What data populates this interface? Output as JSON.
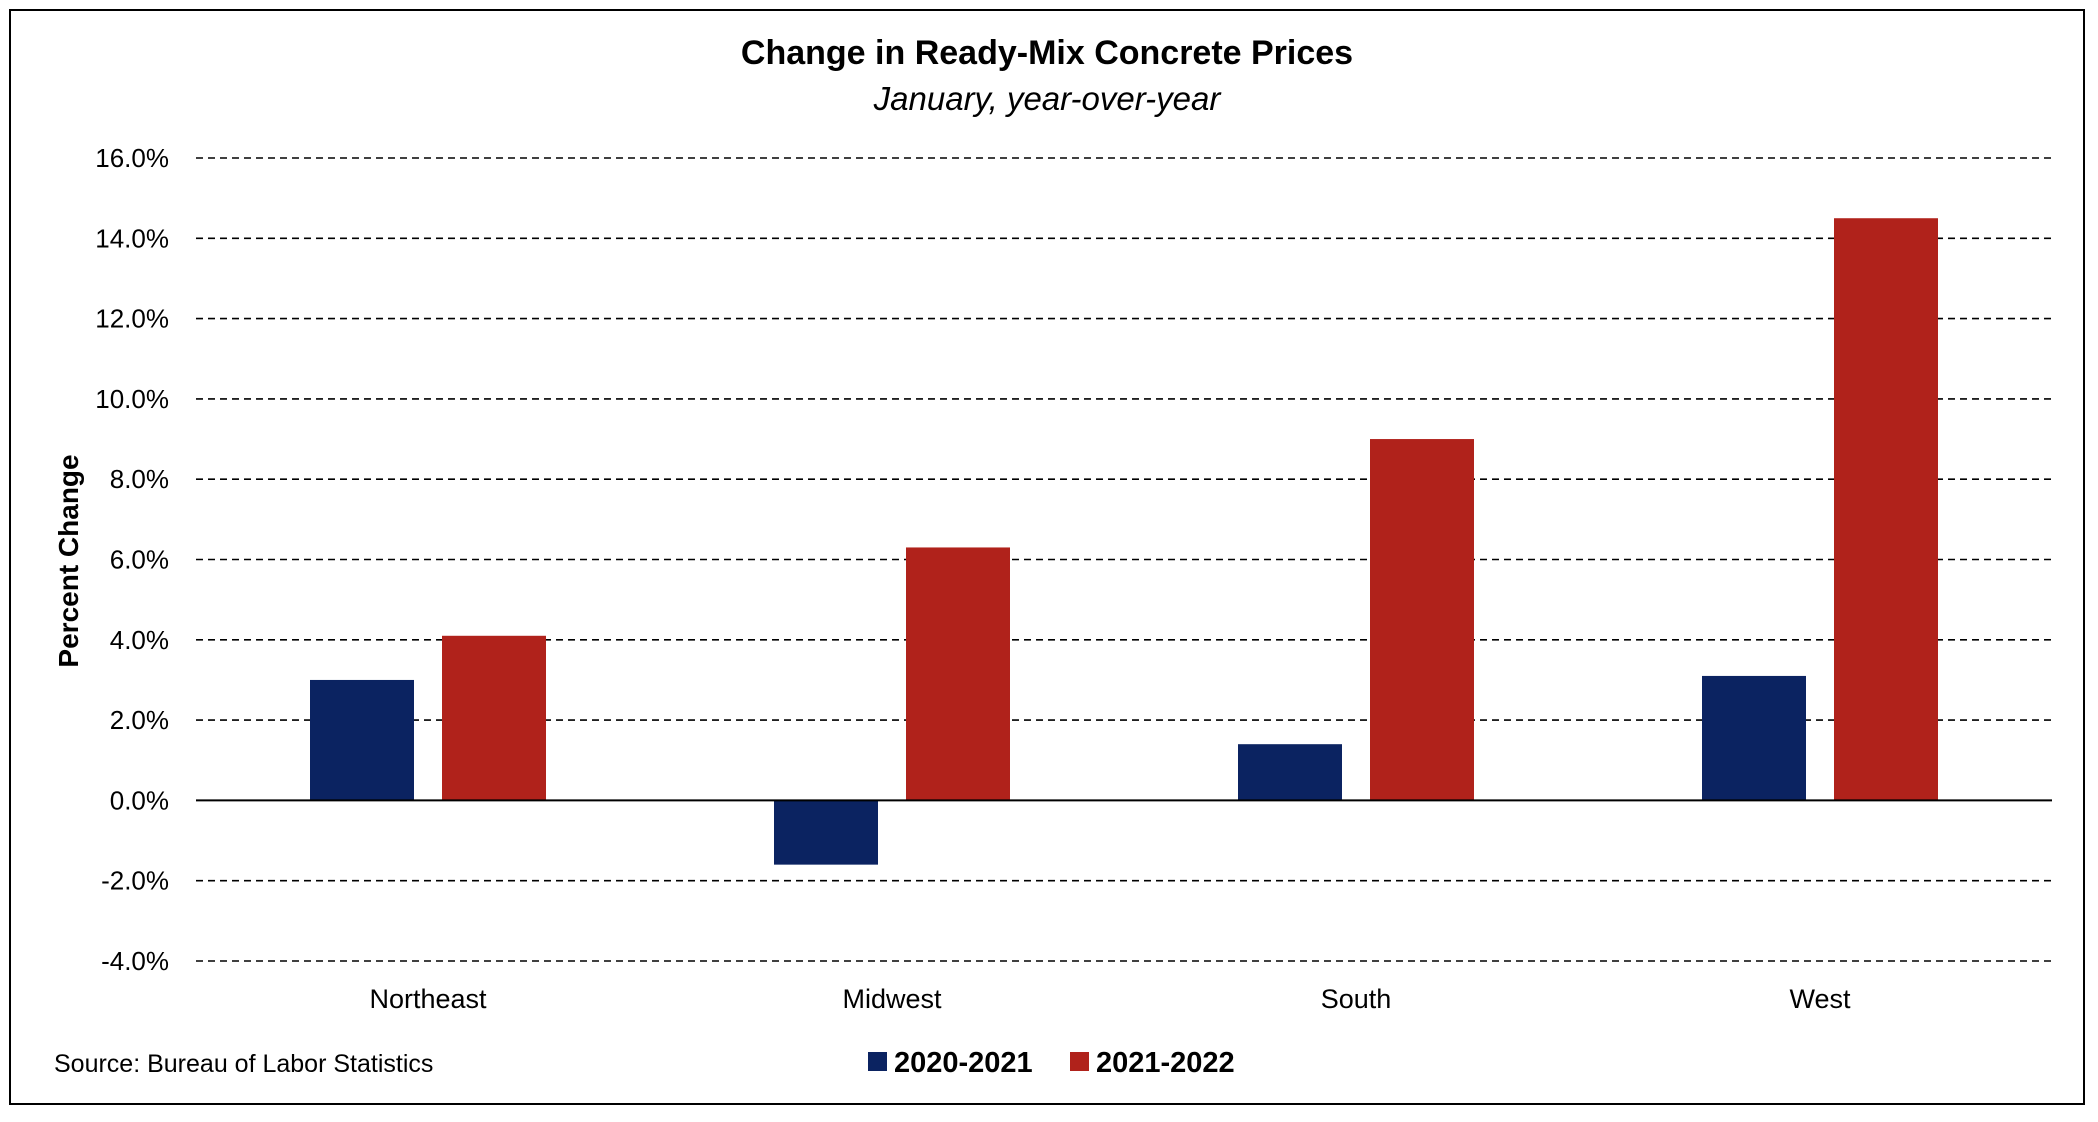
{
  "chart_data": {
    "type": "bar",
    "title": "Change in Ready-Mix Concrete Prices",
    "subtitle": "January, year-over-year",
    "xlabel": "",
    "ylabel": "Percent Change",
    "categories": [
      "Northeast",
      "Midwest",
      "South",
      "West"
    ],
    "series": [
      {
        "name": "2020-2021",
        "color": "#0B2361",
        "values": [
          3.0,
          -1.6,
          1.4,
          3.1
        ]
      },
      {
        "name": "2021-2022",
        "color": "#B0221B",
        "values": [
          4.1,
          6.3,
          9.0,
          14.5
        ]
      }
    ],
    "ylim": [
      -4.0,
      16.0
    ],
    "yticks": [
      -4.0,
      -2.0,
      0.0,
      2.0,
      4.0,
      6.0,
      8.0,
      10.0,
      12.0,
      14.0,
      16.0
    ],
    "ytick_labels": [
      "-4.0%",
      "-2.0%",
      "0.0%",
      "2.0%",
      "4.0%",
      "6.0%",
      "8.0%",
      "10.0%",
      "12.0%",
      "14.0%",
      "16.0%"
    ],
    "grid": "horizontal dashed",
    "legend_position": "bottom-center",
    "source": "Source:  Bureau of Labor Statistics"
  }
}
